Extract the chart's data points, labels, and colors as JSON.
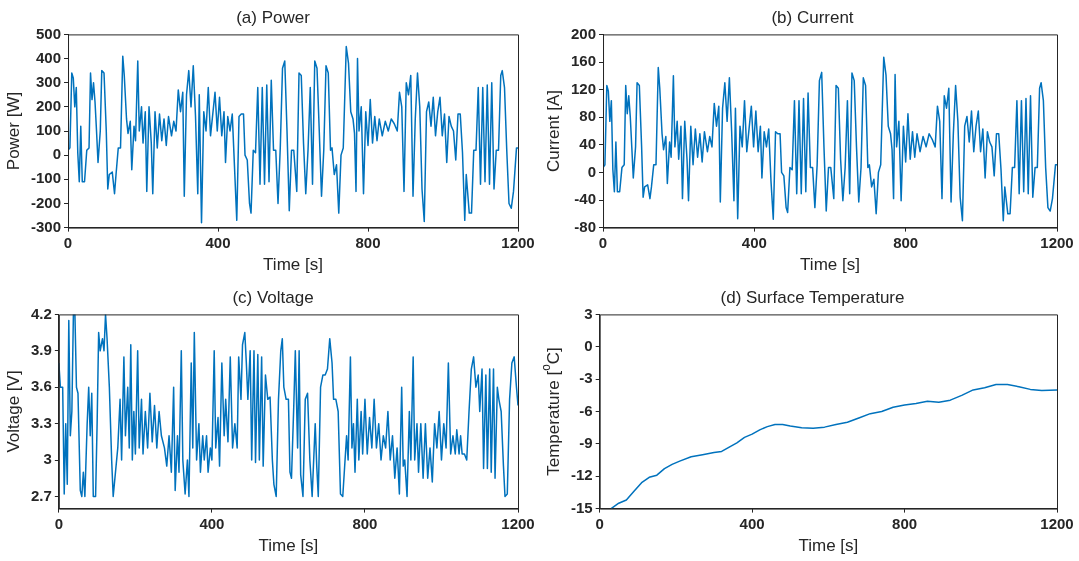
{
  "chart_data": [
    {
      "type": "line",
      "title": "(a) Power",
      "xlabel": "Time [s]",
      "ylabel": "Power [W]",
      "xlim": [
        0,
        1200
      ],
      "ylim": [
        -300,
        500
      ],
      "xticks": [
        0,
        400,
        800,
        1200
      ],
      "yticks": [
        -300,
        -200,
        -100,
        0,
        100,
        200,
        300,
        400,
        500
      ],
      "x": [
        0,
        5,
        10,
        14,
        18,
        22,
        26,
        30,
        34,
        38,
        44,
        50,
        56,
        60,
        64,
        68,
        72,
        76,
        80,
        86,
        90,
        96,
        102,
        106,
        110,
        118,
        124,
        128,
        134,
        140,
        146,
        150,
        156,
        160,
        166,
        170,
        176,
        180,
        186,
        190,
        196,
        200,
        206,
        210,
        216,
        222,
        226,
        232,
        238,
        244,
        250,
        256,
        262,
        268,
        276,
        282,
        288,
        294,
        300,
        306,
        310,
        316,
        322,
        328,
        334,
        340,
        346,
        350,
        356,
        362,
        368,
        374,
        380,
        386,
        392,
        398,
        404,
        410,
        416,
        420,
        426,
        432,
        438,
        444,
        450,
        456,
        462,
        468,
        472,
        478,
        484,
        488,
        494,
        500,
        506,
        512,
        518,
        524,
        530,
        536,
        542,
        548,
        554,
        560,
        566,
        572,
        578,
        584,
        590,
        596,
        602,
        610,
        616,
        622,
        628,
        634,
        640,
        646,
        652,
        658,
        664,
        670,
        676,
        682,
        688,
        694,
        700,
        704,
        710,
        716,
        722,
        728,
        734,
        742,
        748,
        754,
        760,
        764,
        768,
        772,
        776,
        782,
        788,
        794,
        800,
        806,
        812,
        818,
        824,
        830,
        838,
        846,
        854,
        862,
        870,
        878,
        884,
        890,
        896,
        902,
        908,
        914,
        920,
        926,
        932,
        938,
        944,
        950,
        956,
        962,
        968,
        974,
        980,
        986,
        992,
        998,
        1004,
        1010,
        1016,
        1022,
        1028,
        1034,
        1040,
        1046,
        1052,
        1058,
        1062,
        1070,
        1076,
        1082,
        1088,
        1094,
        1100,
        1106,
        1112,
        1118,
        1124,
        1130,
        1136,
        1142,
        1148,
        1154,
        1158,
        1164,
        1170,
        1176,
        1182,
        1188,
        1196,
        1200
      ],
      "series": [
        {
          "color": "#0072bd",
          "values": [
            20,
            30,
            340,
            320,
            200,
            280,
            10,
            -110,
            120,
            -110,
            -110,
            20,
            30,
            340,
            230,
            300,
            220,
            100,
            -30,
            100,
            350,
            340,
            100,
            -140,
            -80,
            -70,
            -160,
            -80,
            30,
            30,
            410,
            330,
            150,
            90,
            140,
            -60,
            120,
            60,
            390,
            100,
            200,
            50,
            180,
            -150,
            200,
            50,
            -160,
            180,
            30,
            170,
            60,
            150,
            40,
            160,
            80,
            140,
            100,
            270,
            180,
            260,
            -170,
            250,
            350,
            200,
            370,
            160,
            -160,
            250,
            -280,
            180,
            100,
            280,
            80,
            170,
            260,
            100,
            240,
            80,
            180,
            -30,
            160,
            100,
            170,
            -50,
            -270,
            160,
            170,
            170,
            0,
            -20,
            -200,
            -240,
            20,
            10,
            280,
            -120,
            280,
            -120,
            290,
            -110,
            310,
            20,
            20,
            -200,
            30,
            360,
            390,
            100,
            -230,
            20,
            20,
            -150,
            340,
            330,
            50,
            -160,
            20,
            280,
            -120,
            390,
            360,
            100,
            -170,
            20,
            370,
            340,
            20,
            30,
            -80,
            -40,
            -240,
            0,
            30,
            450,
            380,
            180,
            150,
            90,
            -150,
            400,
            100,
            200,
            -160,
            180,
            40,
            230,
            50,
            160,
            60,
            150,
            80,
            140,
            100,
            150,
            130,
            100,
            260,
            200,
            -150,
            300,
            250,
            330,
            -170,
            150,
            340,
            200,
            -140,
            -275,
            180,
            220,
            120,
            240,
            80,
            180,
            240,
            80,
            170,
            -30,
            160,
            120,
            100,
            -20,
            170,
            170,
            10,
            -270,
            -80,
            -240,
            -240,
            20,
            20,
            280,
            -120,
            280,
            -110,
            290,
            -120,
            300,
            -140,
            20,
            20,
            330,
            350,
            280,
            20,
            -200,
            -220,
            -150,
            30,
            30
          ]
        }
      ]
    },
    {
      "type": "line",
      "title": "(b) Current",
      "xlabel": "Time [s]",
      "ylabel": "Current [A]",
      "xlim": [
        0,
        1200
      ],
      "ylim": [
        -80,
        200
      ],
      "xticks": [
        0,
        400,
        800,
        1200
      ],
      "yticks": [
        -80,
        -40,
        0,
        40,
        80,
        120,
        160,
        200
      ],
      "x": [
        0,
        5,
        10,
        14,
        18,
        22,
        26,
        30,
        34,
        38,
        44,
        50,
        56,
        60,
        64,
        68,
        72,
        76,
        80,
        86,
        90,
        96,
        102,
        106,
        110,
        118,
        124,
        128,
        134,
        140,
        146,
        150,
        156,
        160,
        166,
        170,
        176,
        180,
        186,
        190,
        196,
        200,
        206,
        210,
        216,
        222,
        226,
        232,
        238,
        244,
        250,
        256,
        262,
        268,
        276,
        282,
        288,
        294,
        300,
        306,
        310,
        316,
        322,
        328,
        334,
        340,
        346,
        350,
        356,
        362,
        368,
        374,
        380,
        386,
        392,
        398,
        404,
        410,
        416,
        420,
        426,
        432,
        438,
        444,
        450,
        456,
        462,
        468,
        472,
        478,
        484,
        488,
        494,
        500,
        506,
        512,
        518,
        524,
        530,
        536,
        542,
        548,
        554,
        560,
        566,
        572,
        578,
        584,
        590,
        596,
        602,
        610,
        616,
        622,
        628,
        634,
        640,
        646,
        652,
        658,
        664,
        670,
        676,
        682,
        688,
        694,
        700,
        704,
        710,
        716,
        722,
        728,
        734,
        742,
        748,
        754,
        760,
        764,
        768,
        772,
        776,
        782,
        788,
        794,
        800,
        806,
        812,
        818,
        824,
        830,
        838,
        846,
        854,
        862,
        870,
        878,
        884,
        890,
        896,
        902,
        908,
        914,
        920,
        926,
        932,
        938,
        944,
        950,
        956,
        962,
        968,
        974,
        980,
        986,
        992,
        998,
        1004,
        1010,
        1016,
        1022,
        1028,
        1034,
        1040,
        1046,
        1052,
        1058,
        1062,
        1070,
        1076,
        1082,
        1088,
        1094,
        1100,
        1106,
        1112,
        1118,
        1124,
        1130,
        1136,
        1142,
        1148,
        1154,
        1158,
        1164,
        1170,
        1176,
        1182,
        1188,
        1196,
        1200
      ],
      "series": [
        {
          "color": "#0072bd",
          "values": [
            7,
            11,
            126,
            118,
            74,
            104,
            4,
            -28,
            44,
            -28,
            -28,
            7,
            11,
            126,
            85,
            111,
            81,
            37,
            -8,
            37,
            130,
            126,
            37,
            -36,
            -21,
            -18,
            -38,
            -21,
            11,
            11,
            152,
            122,
            56,
            33,
            52,
            -16,
            44,
            22,
            140,
            37,
            74,
            19,
            67,
            -38,
            74,
            19,
            -41,
            67,
            11,
            63,
            22,
            56,
            15,
            59,
            30,
            52,
            37,
            100,
            67,
            96,
            -43,
            93,
            130,
            74,
            137,
            59,
            -41,
            93,
            -67,
            67,
            37,
            104,
            30,
            63,
            96,
            37,
            89,
            30,
            67,
            -8,
            59,
            37,
            63,
            -13,
            -68,
            59,
            56,
            56,
            0,
            -5,
            -51,
            -58,
            7,
            4,
            104,
            -31,
            104,
            -31,
            107,
            -28,
            115,
            7,
            7,
            -51,
            11,
            133,
            145,
            37,
            -56,
            7,
            7,
            -38,
            126,
            122,
            19,
            -41,
            7,
            104,
            -31,
            144,
            133,
            37,
            -43,
            7,
            137,
            126,
            7,
            11,
            -21,
            -10,
            -60,
            0,
            11,
            167,
            141,
            67,
            56,
            33,
            -38,
            142,
            37,
            74,
            -41,
            67,
            15,
            85,
            19,
            59,
            22,
            56,
            30,
            52,
            37,
            56,
            48,
            37,
            96,
            74,
            -38,
            111,
            93,
            122,
            -43,
            56,
            126,
            74,
            -36,
            -70,
            67,
            81,
            44,
            89,
            30,
            67,
            89,
            30,
            63,
            -8,
            59,
            44,
            37,
            -5,
            56,
            56,
            4,
            -70,
            -21,
            -60,
            -60,
            7,
            7,
            104,
            -31,
            104,
            -28,
            107,
            -31,
            111,
            -36,
            7,
            7,
            122,
            130,
            104,
            7,
            -51,
            -56,
            -38,
            11,
            11
          ]
        }
      ]
    },
    {
      "type": "line",
      "title": "(c) Voltage",
      "xlabel": "Time [s]",
      "ylabel": "Voltage [V]",
      "xlim": [
        0,
        1200
      ],
      "ylim": [
        2.6,
        4.2
      ],
      "xticks": [
        0,
        400,
        800,
        1200
      ],
      "yticks": [
        2.7,
        3,
        3.3,
        3.6,
        3.9,
        4.2
      ],
      "x": [
        0,
        4,
        10,
        14,
        18,
        22,
        26,
        30,
        34,
        38,
        42,
        46,
        50,
        56,
        60,
        64,
        68,
        74,
        78,
        82,
        86,
        90,
        96,
        100,
        104,
        108,
        114,
        118,
        122,
        126,
        132,
        138,
        142,
        148,
        154,
        160,
        164,
        170,
        174,
        180,
        184,
        188,
        192,
        196,
        200,
        206,
        210,
        216,
        220,
        226,
        232,
        238,
        244,
        250,
        256,
        262,
        268,
        276,
        282,
        288,
        294,
        300,
        304,
        310,
        314,
        320,
        324,
        330,
        336,
        340,
        346,
        350,
        354,
        360,
        366,
        370,
        376,
        380,
        386,
        390,
        396,
        400,
        406,
        410,
        416,
        420,
        426,
        432,
        436,
        442,
        448,
        454,
        460,
        466,
        470,
        476,
        480,
        486,
        490,
        494,
        500,
        504,
        510,
        514,
        520,
        524,
        530,
        534,
        540,
        546,
        552,
        558,
        562,
        568,
        574,
        580,
        584,
        588,
        594,
        600,
        604,
        608,
        614,
        618,
        624,
        628,
        632,
        638,
        644,
        650,
        656,
        662,
        666,
        670,
        674,
        678,
        684,
        690,
        696,
        702,
        708,
        714,
        718,
        724,
        730,
        736,
        742,
        748,
        752,
        756,
        762,
        766,
        770,
        774,
        780,
        784,
        790,
        794,
        800,
        806,
        812,
        818,
        824,
        830,
        836,
        842,
        848,
        854,
        860,
        866,
        872,
        878,
        884,
        890,
        896,
        900,
        904,
        910,
        916,
        920,
        926,
        930,
        936,
        940,
        946,
        952,
        958,
        964,
        970,
        976,
        982,
        988,
        994,
        1000,
        1006,
        1012,
        1018,
        1024,
        1030,
        1036,
        1040,
        1046,
        1050,
        1054,
        1060,
        1066,
        1072,
        1078,
        1084,
        1090,
        1096,
        1100,
        1106,
        1110,
        1116,
        1120,
        1126,
        1130,
        1136,
        1140,
        1146,
        1150,
        1156,
        1162,
        1166,
        1172,
        1178,
        1184,
        1190,
        1196,
        1200
      ],
      "series": [
        {
          "color": "#0072bd",
          "values": [
            3.8,
            3.6,
            3.6,
            2.72,
            3.3,
            2.8,
            4.15,
            3.2,
            3.4,
            4.2,
            4.2,
            3.6,
            3.55,
            2.75,
            2.7,
            2.9,
            2.7,
            3.3,
            3.6,
            3.2,
            3.55,
            2.7,
            2.7,
            3.3,
            4.05,
            3.9,
            4,
            3.9,
            4.2,
            4,
            3.6,
            3,
            2.7,
            2.9,
            3.1,
            3.5,
            3,
            3.85,
            3.2,
            3.6,
            3.1,
            3.95,
            3,
            3.4,
            3.05,
            3.9,
            3.1,
            3.5,
            3.05,
            3.4,
            3.1,
            3.55,
            3.15,
            3.45,
            3.1,
            3.4,
            3.2,
            3.1,
            2.95,
            3.2,
            2.9,
            3.6,
            2.75,
            3.2,
            2.9,
            3.9,
            3,
            2.72,
            3,
            2.7,
            3.8,
            3.1,
            4.05,
            3,
            3.3,
            2.9,
            3.2,
            3,
            3.2,
            2.9,
            3.1,
            3,
            3.9,
            3.1,
            3.35,
            2.95,
            3.8,
            3.2,
            3.5,
            3.15,
            3.85,
            3.1,
            3.3,
            3.1,
            3.85,
            3.5,
            3.95,
            4.05,
            3.8,
            3.5,
            3.9,
            3,
            3.9,
            2.98,
            3.87,
            3,
            3.85,
            2.95,
            3.7,
            3.5,
            3.52,
            3,
            2.8,
            2.7,
            3.5,
            3.9,
            4,
            3.6,
            3.5,
            3.5,
            2.9,
            2.85,
            3.45,
            3.9,
            3.1,
            3.9,
            2.88,
            2.7,
            3.5,
            3.55,
            3,
            2.7,
            3,
            3.3,
            2.95,
            2.7,
            3.6,
            3.7,
            3.7,
            3.75,
            4,
            3.8,
            3.5,
            3.5,
            3.4,
            2.72,
            2.7,
            3,
            3.2,
            3,
            3.85,
            3.1,
            3.3,
            2.9,
            3.5,
            3,
            3.4,
            3.05,
            3.5,
            3.05,
            3.35,
            3.1,
            3.5,
            3.1,
            3.3,
            3,
            3.2,
            3.1,
            3.4,
            3,
            3.2,
            2.85,
            3.1,
            2.72,
            3.6,
            2.95,
            3,
            2.7,
            3.4,
            3,
            3.85,
            3,
            3.3,
            2.9,
            3.3,
            2.85,
            3.3,
            2.85,
            3.1,
            2.82,
            3.3,
            3.1,
            3.4,
            3,
            3.3,
            3.1,
            3.8,
            3.05,
            3.2,
            3.05,
            3.25,
            3.05,
            3.2,
            3.05,
            3.05,
            3,
            3.4,
            3.75,
            3.85,
            3.6,
            3.7,
            3.4,
            3.75,
            2.93,
            3.7,
            2.93,
            3.75,
            2.9,
            3.75,
            2.85,
            3.6,
            3.5,
            3.4,
            2.95,
            2.7,
            2.72,
            3.5,
            3.8,
            3.85,
            3.6,
            3.45
          ]
        }
      ]
    },
    {
      "type": "line",
      "title": "(d) Surface Temperature",
      "xlabel": "Time [s]",
      "ylabel": "Temperature [$^{o}$C]",
      "xlim": [
        0,
        1200
      ],
      "ylim": [
        -15,
        3
      ],
      "xticks": [
        0,
        400,
        800,
        1200
      ],
      "yticks": [
        -15,
        -12,
        -9,
        -6,
        -3,
        0,
        3
      ],
      "x": [
        30,
        50,
        70,
        90,
        110,
        130,
        150,
        170,
        190,
        210,
        240,
        270,
        300,
        320,
        340,
        360,
        380,
        400,
        420,
        440,
        460,
        480,
        500,
        530,
        560,
        590,
        620,
        650,
        680,
        710,
        740,
        770,
        800,
        830,
        860,
        890,
        920,
        950,
        980,
        1010,
        1040,
        1070,
        1100,
        1130,
        1160,
        1200
      ],
      "series": [
        {
          "color": "#0072bd",
          "values": [
            -15,
            -14.5,
            -14.2,
            -13.4,
            -12.6,
            -12.1,
            -11.9,
            -11.3,
            -10.9,
            -10.6,
            -10.2,
            -10,
            -9.8,
            -9.7,
            -9.3,
            -8.9,
            -8.4,
            -8.1,
            -7.7,
            -7.4,
            -7.2,
            -7.2,
            -7.35,
            -7.5,
            -7.55,
            -7.45,
            -7.2,
            -7,
            -6.6,
            -6.2,
            -6,
            -5.6,
            -5.4,
            -5.25,
            -5.05,
            -5.15,
            -4.95,
            -4.5,
            -4,
            -3.8,
            -3.5,
            -3.5,
            -3.7,
            -3.95,
            -4.05,
            -4
          ]
        }
      ]
    }
  ]
}
